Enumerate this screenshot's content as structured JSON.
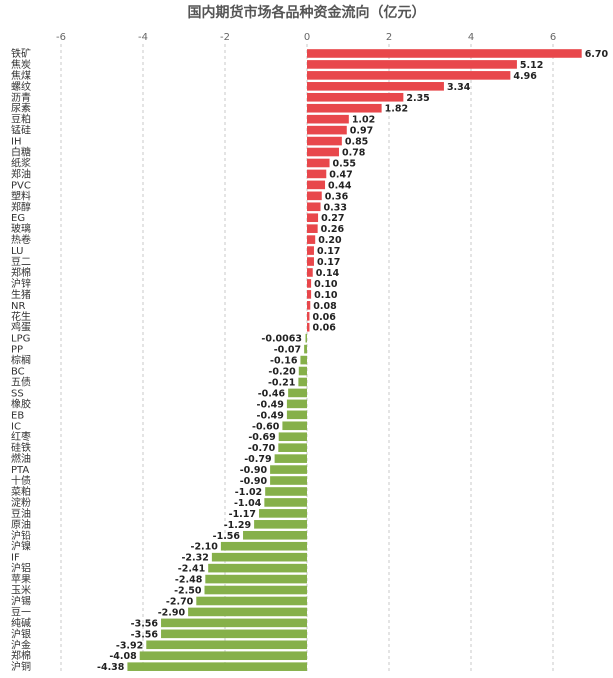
{
  "chart_data": {
    "type": "bar",
    "orientation": "horizontal",
    "title": "国内期货市场各品种资金流向（亿元）",
    "xlabel": "",
    "ylabel": "",
    "xlim": [
      -6.4,
      6.7
    ],
    "xticks": [
      -6,
      -4,
      -2,
      0,
      2,
      4,
      6
    ],
    "grid": "vertical dashed",
    "colors": {
      "positive": "#e8474b",
      "negative": "#86b04a"
    },
    "categories": [
      "铁矿",
      "焦炭",
      "焦煤",
      "螺纹",
      "沥青",
      "尿素",
      "豆粕",
      "锰硅",
      "IH",
      "白糖",
      "纸浆",
      "郑油",
      "PVC",
      "塑料",
      "郑醇",
      "EG",
      "玻璃",
      "热卷",
      "LU",
      "豆二",
      "郑棉",
      "沪锌",
      "生猪",
      "NR",
      "花生",
      "鸡蛋",
      "LPG",
      "PP",
      "棕榈",
      "BC",
      "五债",
      "SS",
      "橡胶",
      "EB",
      "IC",
      "红枣",
      "硅铁",
      "燃油",
      "PTA",
      "十债",
      "菜粕",
      "淀粉",
      "豆油",
      "原油",
      "沪铅",
      "沪镍",
      "IF",
      "沪铝",
      "苹果",
      "玉米",
      "沪锡",
      "豆一",
      "纯碱",
      "沪银",
      "沪金",
      "郑棉",
      "沪铜"
    ],
    "values": [
      6.7,
      5.12,
      4.96,
      3.34,
      2.35,
      1.82,
      1.02,
      0.97,
      0.85,
      0.78,
      0.55,
      0.47,
      0.44,
      0.36,
      0.33,
      0.27,
      0.26,
      0.2,
      0.17,
      0.17,
      0.14,
      0.1,
      0.1,
      0.08,
      0.06,
      0.06,
      -0.0063,
      -0.07,
      -0.16,
      -0.2,
      -0.21,
      -0.46,
      -0.49,
      -0.49,
      -0.6,
      -0.69,
      -0.7,
      -0.79,
      -0.9,
      -0.9,
      -1.02,
      -1.04,
      -1.17,
      -1.29,
      -1.56,
      -2.1,
      -2.32,
      -2.41,
      -2.48,
      -2.5,
      -2.7,
      -2.9,
      -3.56,
      -3.56,
      -3.92,
      -4.08,
      -4.38
    ],
    "value_labels": [
      "6.70",
      "5.12",
      "4.96",
      "3.34",
      "2.35",
      "1.82",
      "1.02",
      "0.97",
      "0.85",
      "0.78",
      "0.55",
      "0.47",
      "0.44",
      "0.36",
      "0.33",
      "0.27",
      "0.26",
      "0.20",
      "0.17",
      "0.17",
      "0.14",
      "0.10",
      "0.10",
      "0.08",
      "0.06",
      "0.06",
      "-0.0063",
      "-0.07",
      "-0.16",
      "-0.20",
      "-0.21",
      "-0.46",
      "-0.49",
      "-0.49",
      "-0.60",
      "-0.69",
      "-0.70",
      "-0.79",
      "-0.90",
      "-0.90",
      "-1.02",
      "-1.04",
      "-1.17",
      "-1.29",
      "-1.56",
      "-2.10",
      "-2.32",
      "-2.41",
      "-2.48",
      "-2.50",
      "-2.70",
      "-2.90",
      "-3.56",
      "-3.56",
      "-3.92",
      "-4.08",
      "-4.38"
    ]
  }
}
